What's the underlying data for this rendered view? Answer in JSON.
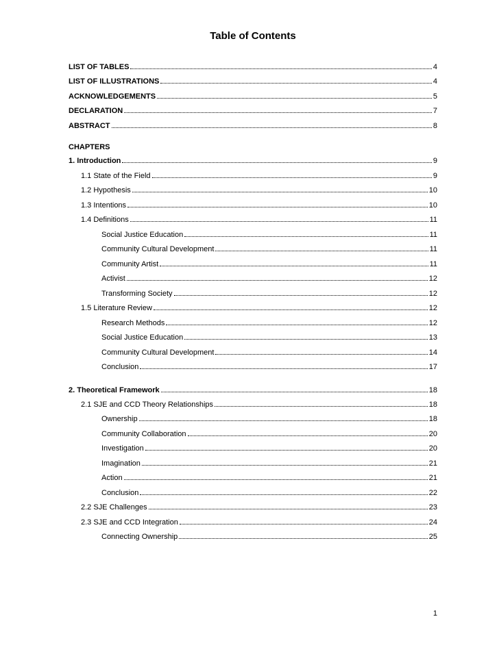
{
  "title": "Table of Contents",
  "page_number": "1",
  "colors": {
    "background": "#ffffff",
    "text": "#000000",
    "dots": "#000000"
  },
  "typography": {
    "title_fontsize": 15,
    "body_fontsize": 11,
    "font_family": "Arial"
  },
  "front_matter": [
    {
      "label": "LIST OF TABLES",
      "page": "4",
      "bold": true,
      "indent": 0
    },
    {
      "label": "LIST OF ILLUSTRATIONS",
      "page": "4",
      "bold": true,
      "indent": 0
    },
    {
      "label": "ACKNOWLEDGEMENTS",
      "page": "5",
      "bold": true,
      "indent": 0
    },
    {
      "label": "DECLARATION",
      "page": "7",
      "bold": true,
      "indent": 0
    },
    {
      "label": "ABSTRACT",
      "page": "8",
      "bold": true,
      "indent": 0
    }
  ],
  "chapters_heading": "CHAPTERS",
  "chapters": [
    {
      "entries": [
        {
          "label": "1.  Introduction",
          "page": "9",
          "bold": true,
          "indent": 0
        },
        {
          "label": "1.1  State of the Field",
          "page": "9",
          "bold": false,
          "indent": 1
        },
        {
          "label": "1.2  Hypothesis",
          "page": "10",
          "bold": false,
          "indent": 1
        },
        {
          "label": "1.3  Intentions",
          "page": "10",
          "bold": false,
          "indent": 1
        },
        {
          "label": "1.4  Definitions",
          "page": "11",
          "bold": false,
          "indent": 1
        },
        {
          "label": "Social Justice Education",
          "page": "11",
          "bold": false,
          "indent": 2
        },
        {
          "label": "Community Cultural Development",
          "page": "11",
          "bold": false,
          "indent": 2
        },
        {
          "label": "Community Artist",
          "page": "11",
          "bold": false,
          "indent": 2
        },
        {
          "label": "Activist",
          "page": "12",
          "bold": false,
          "indent": 2
        },
        {
          "label": "Transforming Society",
          "page": "12",
          "bold": false,
          "indent": 2
        },
        {
          "label": "1.5  Literature Review",
          "page": "12",
          "bold": false,
          "indent": 1
        },
        {
          "label": "Research Methods",
          "page": "12",
          "bold": false,
          "indent": 2
        },
        {
          "label": "Social Justice Education",
          "page": "13",
          "bold": false,
          "indent": 2
        },
        {
          "label": "Community Cultural Development",
          "page": "14",
          "bold": false,
          "indent": 2
        },
        {
          "label": "Conclusion",
          "page": "17",
          "bold": false,
          "indent": 2
        }
      ]
    },
    {
      "entries": [
        {
          "label": "2. Theoretical Framework",
          "page": "18",
          "bold": true,
          "indent": 0
        },
        {
          "label": "2.1  SJE and CCD Theory Relationships",
          "page": "18",
          "bold": false,
          "indent": 1
        },
        {
          "label": "Ownership",
          "page": "18",
          "bold": false,
          "indent": 2
        },
        {
          "label": "Community Collaboration",
          "page": "20",
          "bold": false,
          "indent": 2
        },
        {
          "label": "Investigation",
          "page": "20",
          "bold": false,
          "indent": 2
        },
        {
          "label": "Imagination",
          "page": "21",
          "bold": false,
          "indent": 2
        },
        {
          "label": "Action",
          "page": "21",
          "bold": false,
          "indent": 2
        },
        {
          "label": "Conclusion",
          "page": "22",
          "bold": false,
          "indent": 2
        },
        {
          "label": "2.2  SJE Challenges",
          "page": "23",
          "bold": false,
          "indent": 1
        },
        {
          "label": "2.3  SJE and CCD Integration",
          "page": "24",
          "bold": false,
          "indent": 1
        },
        {
          "label": "Connecting Ownership",
          "page": "25",
          "bold": false,
          "indent": 2
        }
      ]
    }
  ]
}
